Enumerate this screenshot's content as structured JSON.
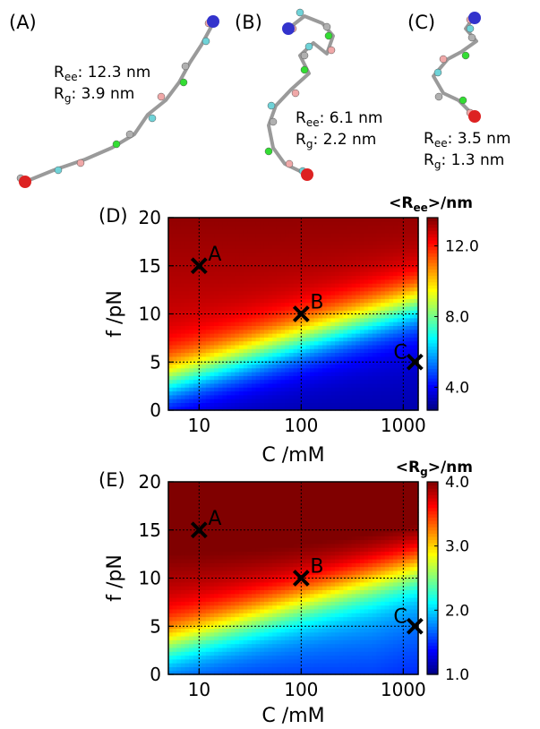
{
  "panels": {
    "a": {
      "label": "(A)",
      "ree": "12.3 nm",
      "rg": "3.9 nm"
    },
    "b": {
      "label": "(B)",
      "ree": "6.1 nm",
      "rg": "2.2 nm"
    },
    "c": {
      "label": "(C)",
      "ree": "3.5 nm",
      "rg": "1.3 nm"
    }
  },
  "chart_data": [
    {
      "panel": "(D)",
      "type": "heatmap",
      "colorbar_title": "<Ree>/nm",
      "colorbar_range": [
        2.7,
        13.6
      ],
      "colorbar_ticks": [
        4.0,
        8.0,
        12.0
      ],
      "xlabel": "C /mM",
      "ylabel": "f  /pN",
      "xscale": "log",
      "xlim": [
        5,
        1400
      ],
      "ylim": [
        0,
        20
      ],
      "xticks": [
        10,
        100,
        1000
      ],
      "yticks": [
        0,
        5,
        10,
        15,
        20
      ],
      "grid": true,
      "colormap": "jet",
      "points": [
        {
          "label": "A",
          "x": 10,
          "y": 15
        },
        {
          "label": "B",
          "x": 100,
          "y": 10
        },
        {
          "label": "C",
          "x": 1300,
          "y": 5
        }
      ]
    },
    {
      "panel": "(E)",
      "type": "heatmap",
      "colorbar_title": "<Rg>/nm",
      "colorbar_range": [
        1.0,
        4.0
      ],
      "colorbar_ticks": [
        1.0,
        2.0,
        3.0,
        4.0
      ],
      "xlabel": "C /mM",
      "ylabel": "f  /pN",
      "xscale": "log",
      "xlim": [
        5,
        1400
      ],
      "ylim": [
        0,
        20
      ],
      "xticks": [
        10,
        100,
        1000
      ],
      "yticks": [
        0,
        5,
        10,
        15,
        20
      ],
      "grid": true,
      "colormap": "jet",
      "points": [
        {
          "label": "A",
          "x": 10,
          "y": 15
        },
        {
          "label": "B",
          "x": 100,
          "y": 10
        },
        {
          "label": "C",
          "x": 1300,
          "y": 5
        }
      ]
    }
  ]
}
